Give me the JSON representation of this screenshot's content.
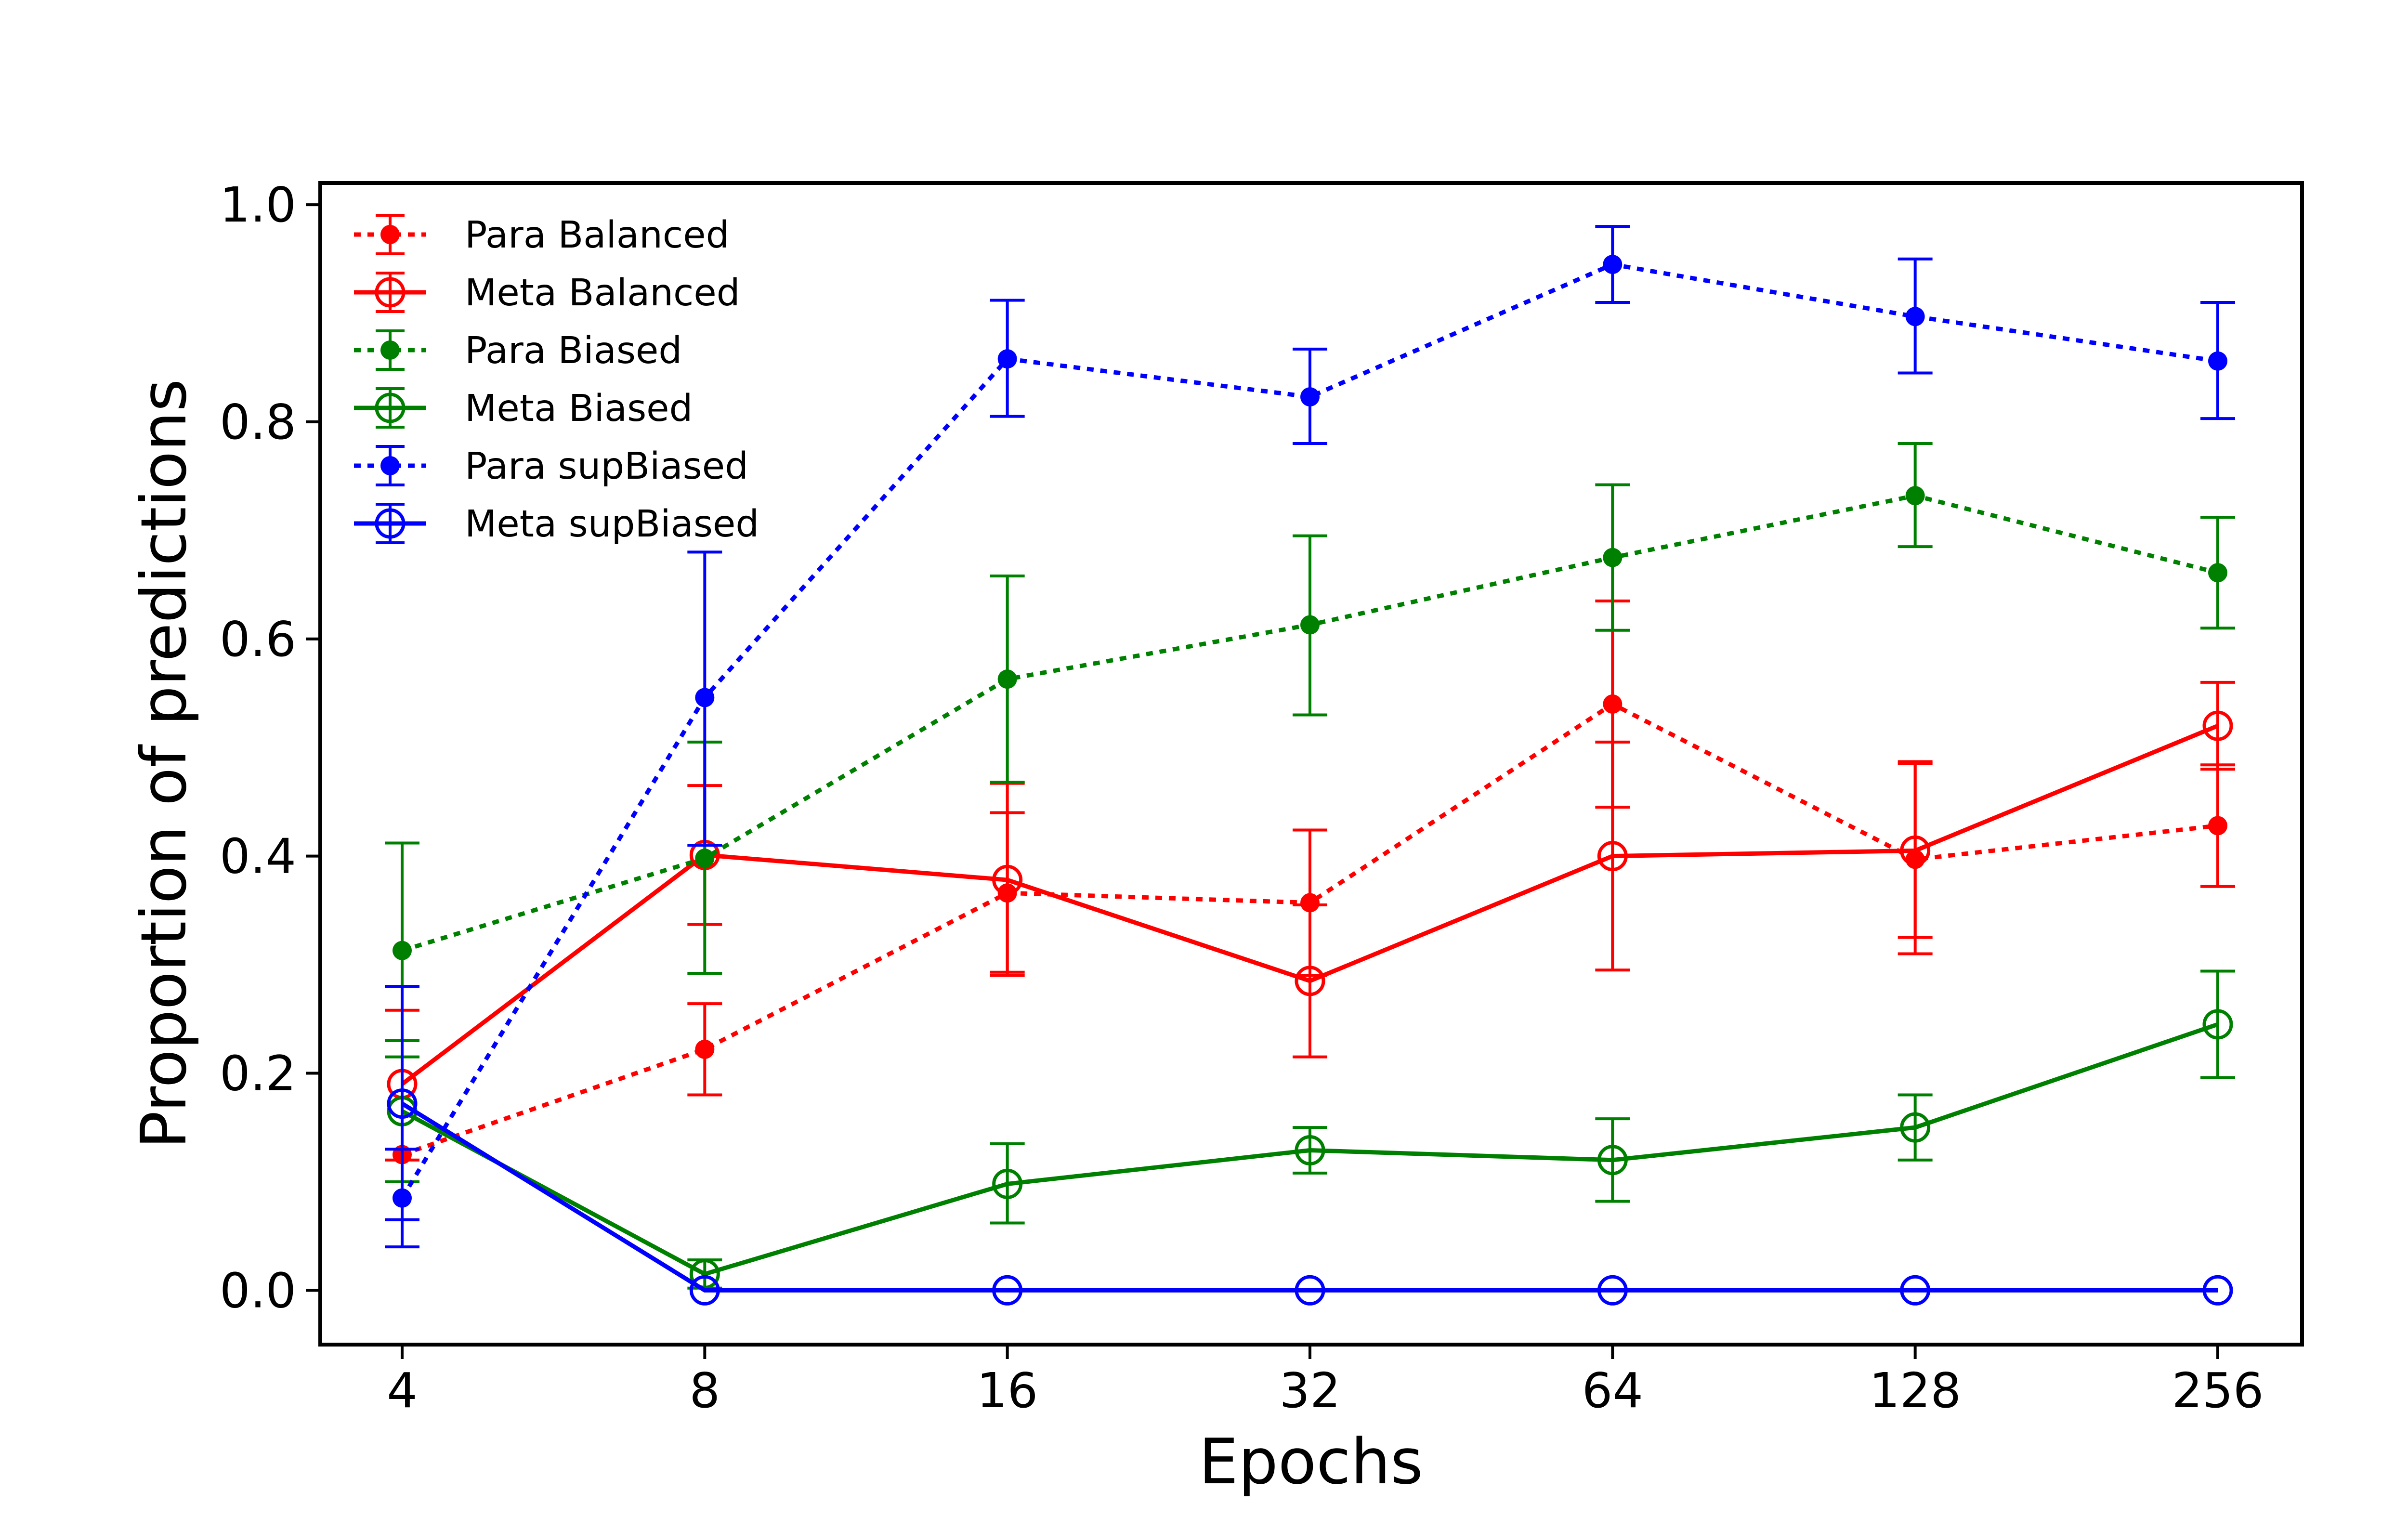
{
  "chart_data": {
    "type": "line",
    "title": "",
    "xlabel": "Epochs",
    "ylabel": "Proportion of predictions",
    "x_scale": "log2",
    "categories": [
      "4",
      "8",
      "16",
      "32",
      "64",
      "128",
      "256"
    ],
    "x": [
      4,
      8,
      16,
      32,
      64,
      128,
      256
    ],
    "ylim": [
      -0.05,
      1.02
    ],
    "yticks": [
      "0.0",
      "0.2",
      "0.4",
      "0.6",
      "0.8",
      "1.0"
    ],
    "grid": false,
    "legend_position": "top-left",
    "series": [
      {
        "name": "Para Balanced",
        "color": "#ff0000",
        "line_style": "dotted",
        "marker": "filled-circle",
        "values": [
          0.125,
          0.222,
          0.366,
          0.357,
          0.54,
          0.397,
          0.428
        ],
        "error": [
          [
            0.065,
            0.258
          ],
          [
            0.18,
            0.264
          ],
          [
            0.29,
            0.44
          ],
          [
            0.29,
            0.424
          ],
          [
            0.445,
            0.635
          ],
          [
            0.31,
            0.485
          ],
          [
            0.372,
            0.484
          ]
        ]
      },
      {
        "name": "Meta Balanced",
        "color": "#ff0000",
        "line_style": "solid",
        "marker": "open-circle",
        "values": [
          0.19,
          0.401,
          0.378,
          0.285,
          0.4,
          0.405,
          0.52
        ],
        "error": [
          [
            0.12,
            0.23
          ],
          [
            0.337,
            0.465
          ],
          [
            0.293,
            0.467
          ],
          [
            0.215,
            0.355
          ],
          [
            0.295,
            0.505
          ],
          [
            0.325,
            0.487
          ],
          [
            0.48,
            0.56
          ]
        ]
      },
      {
        "name": "Para Biased",
        "color": "#008000",
        "line_style": "dotted",
        "marker": "filled-circle",
        "values": [
          0.313,
          0.398,
          0.563,
          0.613,
          0.675,
          0.732,
          0.661
        ],
        "error": [
          [
            0.215,
            0.412
          ],
          [
            0.292,
            0.505
          ],
          [
            0.468,
            0.658
          ],
          [
            0.53,
            0.695
          ],
          [
            0.608,
            0.742
          ],
          [
            0.685,
            0.78
          ],
          [
            0.61,
            0.712
          ]
        ]
      },
      {
        "name": "Meta Biased",
        "color": "#008000",
        "line_style": "solid",
        "marker": "open-circle",
        "values": [
          0.165,
          0.015,
          0.098,
          0.129,
          0.12,
          0.15,
          0.245
        ],
        "error": [
          [
            0.1,
            0.23
          ],
          [
            0.002,
            0.028
          ],
          [
            0.062,
            0.135
          ],
          [
            0.108,
            0.15
          ],
          [
            0.082,
            0.158
          ],
          [
            0.12,
            0.18
          ],
          [
            0.196,
            0.294
          ]
        ]
      },
      {
        "name": "Para supBiased",
        "color": "#0000ff",
        "line_style": "dotted",
        "marker": "filled-circle",
        "values": [
          0.085,
          0.546,
          0.858,
          0.823,
          0.945,
          0.897,
          0.856
        ],
        "error": [
          [
            0.04,
            0.13
          ],
          [
            0.41,
            0.68
          ],
          [
            0.805,
            0.912
          ],
          [
            0.78,
            0.867
          ],
          [
            0.91,
            0.98
          ],
          [
            0.845,
            0.95
          ],
          [
            0.803,
            0.91
          ]
        ]
      },
      {
        "name": "Meta supBiased",
        "color": "#0000ff",
        "line_style": "solid",
        "marker": "open-circle",
        "values": [
          0.172,
          0.0,
          0.0,
          0.0,
          0.0,
          0.0,
          0.0
        ],
        "error": [
          [
            0.065,
            0.28
          ],
          [
            0.0,
            0.0
          ],
          [
            0.0,
            0.0
          ],
          [
            0.0,
            0.0
          ],
          [
            0.0,
            0.0
          ],
          [
            0.0,
            0.0
          ],
          [
            0.0,
            0.0
          ]
        ]
      }
    ]
  }
}
